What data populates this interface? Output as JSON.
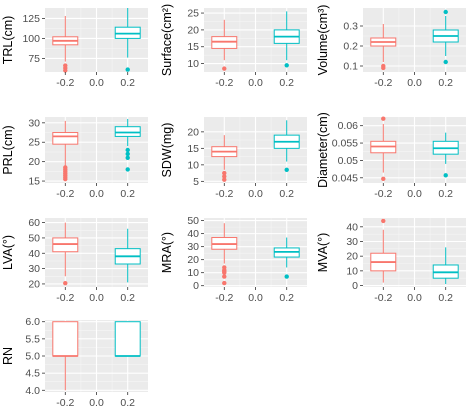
{
  "chart_data": [
    {
      "type": "box",
      "ylabel": "TRL(cm)",
      "x_ticks": [
        "-0.2",
        "0.0",
        "0.2"
      ],
      "ylim": [
        58,
        138
      ],
      "y_ticks": [
        75,
        100,
        125
      ],
      "series": [
        {
          "x": -0.2,
          "color": "#F8766D",
          "min": 71,
          "q1": 92,
          "median": 97,
          "q3": 102,
          "max": 128,
          "outliers": [
            66,
            63,
            60
          ]
        },
        {
          "x": 0.2,
          "color": "#00BFC4",
          "min": 76,
          "q1": 100,
          "median": 106,
          "q3": 114,
          "max": 138,
          "outliers": [
            61
          ]
        }
      ]
    },
    {
      "type": "box",
      "ylabel": "Surface(cm²)",
      "x_ticks": [
        "-0.2",
        "0.0",
        "0.2"
      ],
      "ylim": [
        7.5,
        26.5
      ],
      "y_ticks": [
        10,
        15,
        20,
        25
      ],
      "series": [
        {
          "x": -0.2,
          "color": "#F8766D",
          "min": 11,
          "q1": 14.5,
          "median": 16.5,
          "q3": 18,
          "max": 23,
          "outliers": [
            8.5
          ]
        },
        {
          "x": 0.2,
          "color": "#00BFC4",
          "min": 11,
          "q1": 16,
          "median": 18,
          "q3": 20,
          "max": 25.5,
          "outliers": [
            9.5
          ]
        }
      ]
    },
    {
      "type": "box",
      "ylabel": "Volume(cm³)",
      "x_ticks": [
        "-0.2",
        "0.0",
        "0.2"
      ],
      "ylim": [
        0.07,
        0.39
      ],
      "y_ticks": [
        0.1,
        0.2,
        0.3
      ],
      "series": [
        {
          "x": -0.2,
          "color": "#F8766D",
          "min": 0.12,
          "q1": 0.2,
          "median": 0.22,
          "q3": 0.24,
          "max": 0.31,
          "outliers": [
            0.1,
            0.09
          ]
        },
        {
          "x": 0.2,
          "color": "#00BFC4",
          "min": 0.15,
          "q1": 0.22,
          "median": 0.25,
          "q3": 0.28,
          "max": 0.35,
          "outliers": [
            0.12,
            0.37
          ]
        }
      ]
    },
    {
      "type": "box",
      "ylabel": "PRL(cm)",
      "x_ticks": [
        "-0.2",
        "0.0",
        "0.2"
      ],
      "ylim": [
        14.5,
        31.5
      ],
      "y_ticks": [
        15,
        20,
        25,
        30
      ],
      "series": [
        {
          "x": -0.2,
          "color": "#F8766D",
          "min": 19,
          "q1": 24.5,
          "median": 26.5,
          "q3": 27.5,
          "max": 30.5,
          "outliers": [
            18.5,
            18,
            17.5,
            17,
            16.5,
            16,
            15.5
          ]
        },
        {
          "x": 0.2,
          "color": "#00BFC4",
          "min": 24,
          "q1": 26.5,
          "median": 27.5,
          "q3": 29,
          "max": 31,
          "outliers": [
            23,
            22,
            21,
            18
          ]
        }
      ]
    },
    {
      "type": "box",
      "ylabel": "SDW(mg)",
      "x_ticks": [
        "-0.2",
        "0.0",
        "0.2"
      ],
      "ylim": [
        4.5,
        24.5
      ],
      "y_ticks": [
        5,
        10,
        15,
        20
      ],
      "series": [
        {
          "x": -0.2,
          "color": "#F8766D",
          "min": 8.5,
          "q1": 12.5,
          "median": 14,
          "q3": 15.5,
          "max": 19,
          "outliers": [
            7.5,
            6.5,
            5.5
          ]
        },
        {
          "x": 0.2,
          "color": "#00BFC4",
          "min": 11,
          "q1": 15,
          "median": 17,
          "q3": 19,
          "max": 23.5,
          "outliers": [
            8.5
          ]
        }
      ]
    },
    {
      "type": "box",
      "ylabel": "Diameter(cm)",
      "x_ticks": [
        "-0.2",
        "0.0",
        "0.2"
      ],
      "ylim": [
        0.0435,
        0.0625
      ],
      "y_ticks": [
        0.045,
        0.05,
        0.055,
        0.06
      ],
      "series": [
        {
          "x": -0.2,
          "color": "#F8766D",
          "min": 0.0465,
          "q1": 0.0522,
          "median": 0.054,
          "q3": 0.0555,
          "max": 0.0605,
          "outliers": [
            0.0447,
            0.062
          ]
        },
        {
          "x": 0.2,
          "color": "#00BFC4",
          "min": 0.049,
          "q1": 0.0518,
          "median": 0.0535,
          "q3": 0.0555,
          "max": 0.058,
          "outliers": [
            0.0457
          ]
        }
      ]
    },
    {
      "type": "box",
      "ylabel": "LVA(°)",
      "x_ticks": [
        "-0.2",
        "0.0",
        "0.2"
      ],
      "ylim": [
        18,
        63
      ],
      "y_ticks": [
        20,
        30,
        40,
        50,
        60
      ],
      "series": [
        {
          "x": -0.2,
          "color": "#F8766D",
          "min": 25,
          "q1": 41,
          "median": 46,
          "q3": 50,
          "max": 60,
          "outliers": [
            20.5
          ]
        },
        {
          "x": 0.2,
          "color": "#00BFC4",
          "min": 21,
          "q1": 33,
          "median": 38,
          "q3": 43,
          "max": 56
        }
      ]
    },
    {
      "type": "box",
      "ylabel": "MRA(°)",
      "x_ticks": [
        "-0.2",
        "0.0",
        "0.2"
      ],
      "ylim": [
        -1,
        52
      ],
      "y_ticks": [
        0,
        10,
        20,
        30,
        40,
        50
      ],
      "series": [
        {
          "x": -0.2,
          "color": "#F8766D",
          "min": 17,
          "q1": 28,
          "median": 32,
          "q3": 37,
          "max": 48,
          "outliers": [
            14,
            12,
            11,
            10,
            7,
            2
          ]
        },
        {
          "x": 0.2,
          "color": "#00BFC4",
          "min": 14,
          "q1": 22,
          "median": 26,
          "q3": 29,
          "max": 37,
          "outliers": [
            7
          ]
        }
      ]
    },
    {
      "type": "box",
      "ylabel": "MVA(°)",
      "x_ticks": [
        "-0.2",
        "0.0",
        "0.2"
      ],
      "ylim": [
        -1,
        46
      ],
      "y_ticks": [
        0,
        10,
        20,
        30,
        40
      ],
      "series": [
        {
          "x": -0.2,
          "color": "#F8766D",
          "min": 2,
          "q1": 10,
          "median": 16,
          "q3": 22,
          "max": 38,
          "outliers": [
            44
          ]
        },
        {
          "x": 0.2,
          "color": "#00BFC4",
          "min": 1,
          "q1": 5,
          "median": 9,
          "q3": 14,
          "max": 26
        }
      ]
    },
    {
      "type": "box",
      "ylabel": "RN",
      "x_ticks": [
        "-0.2",
        "0.0",
        "0.2"
      ],
      "ylim": [
        3.95,
        6.05
      ],
      "y_ticks": [
        4.0,
        4.5,
        5.0,
        5.5,
        6.0
      ],
      "y_tick_labels": [
        "4.0",
        "4.5",
        "5.0",
        "5.5",
        "6.0"
      ],
      "series": [
        {
          "x": -0.2,
          "color": "#F8766D",
          "min": 4,
          "q1": 5,
          "median": 5,
          "q3": 6,
          "max": 6
        },
        {
          "x": 0.2,
          "color": "#00BFC4",
          "min": 5,
          "q1": 5,
          "median": 5,
          "q3": 6,
          "max": 6
        }
      ]
    }
  ],
  "theme": {
    "panel_background": "#EBEBEB",
    "grid_major": "#FFFFFF",
    "grid_minor": "#F5F5F5",
    "tick_text": "#4D4D4D",
    "axis_title": "#000000"
  }
}
